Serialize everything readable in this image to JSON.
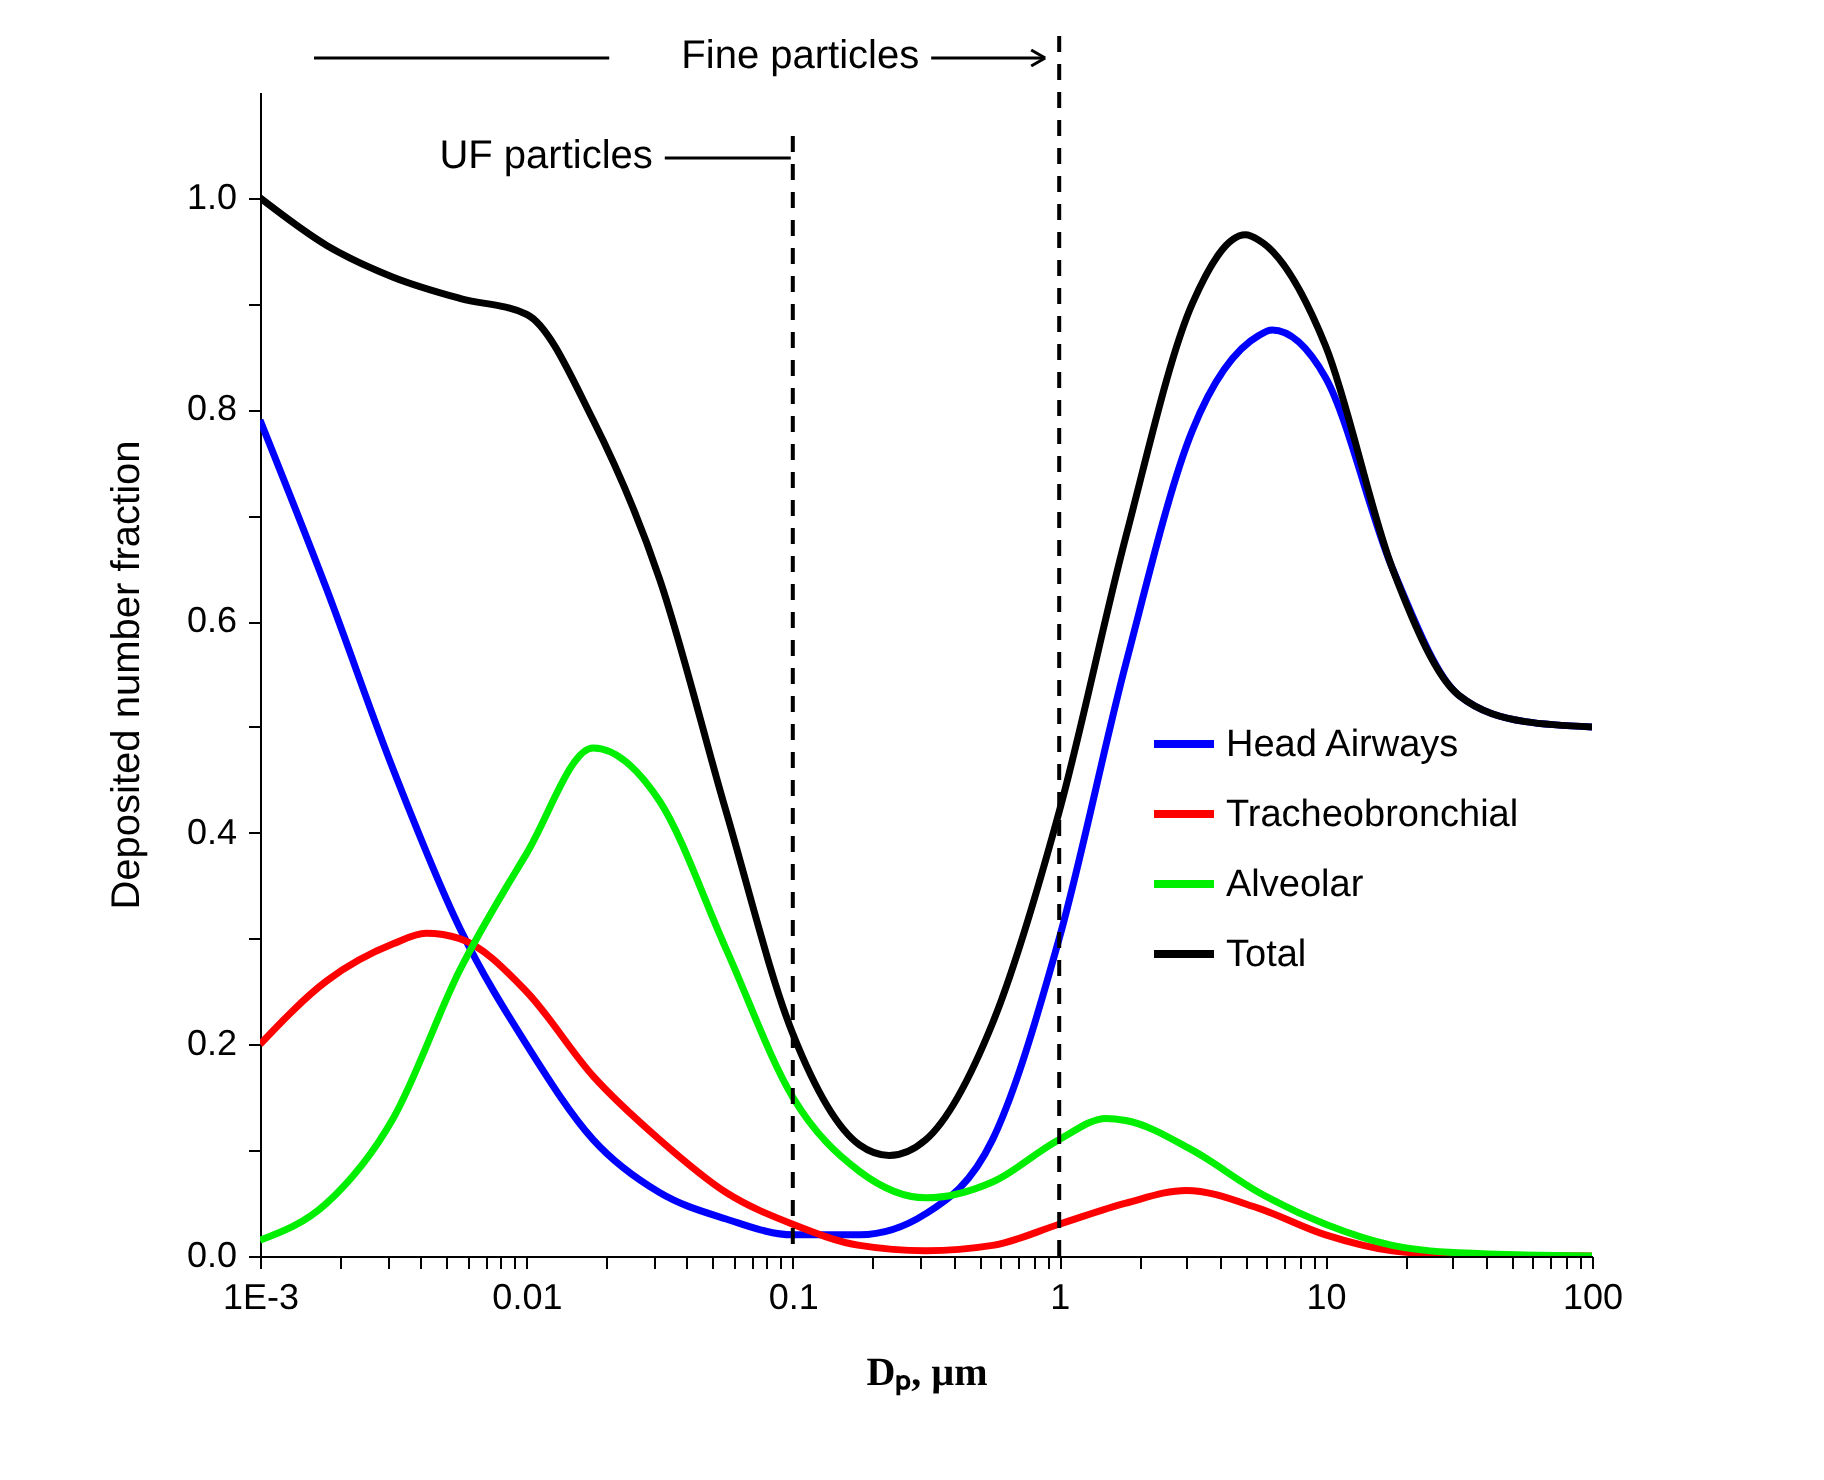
{
  "chart_data": {
    "type": "line",
    "xlabel": "Dₚ, µm",
    "ylabel": "Deposited number fraction",
    "log": "x",
    "grid": false,
    "legend": "bottom right",
    "marker": "none",
    "line_style": "solid",
    "xlim": [
      0.001,
      100
    ],
    "ylim": [
      0,
      1.1
    ],
    "xticks": [
      {
        "value": 0.001,
        "label": "1E-3"
      },
      {
        "value": 0.002,
        "label": null
      },
      {
        "value": 0.003,
        "label": null
      },
      {
        "value": 0.004,
        "label": null
      },
      {
        "value": 0.005,
        "label": null
      },
      {
        "value": 0.006,
        "label": null
      },
      {
        "value": 0.007,
        "label": null
      },
      {
        "value": 0.008,
        "label": null
      },
      {
        "value": 0.009,
        "label": null
      },
      0.01,
      {
        "value": 0.02,
        "label": null
      },
      {
        "value": 0.03,
        "label": null
      },
      {
        "value": 0.04,
        "label": null
      },
      {
        "value": 0.05,
        "label": null
      },
      {
        "value": 0.06,
        "label": null
      },
      {
        "value": 0.07,
        "label": null
      },
      {
        "value": 0.08,
        "label": null
      },
      {
        "value": 0.09,
        "label": null
      },
      0.1,
      {
        "value": 0.2,
        "label": null
      },
      {
        "value": 0.3,
        "label": null
      },
      {
        "value": 0.4,
        "label": null
      },
      {
        "value": 0.5,
        "label": null
      },
      {
        "value": 0.6,
        "label": null
      },
      {
        "value": 0.7,
        "label": null
      },
      {
        "value": 0.8,
        "label": null
      },
      {
        "value": 0.9,
        "label": null
      },
      1,
      {
        "value": 2,
        "label": null
      },
      {
        "value": 3,
        "label": null
      },
      {
        "value": 4,
        "label": null
      },
      {
        "value": 5,
        "label": null
      },
      {
        "value": 6,
        "label": null
      },
      {
        "value": 7,
        "label": null
      },
      {
        "value": 8,
        "label": null
      },
      {
        "value": 9,
        "label": null
      },
      10,
      {
        "value": 20,
        "label": null
      },
      {
        "value": 30,
        "label": null
      },
      {
        "value": 40,
        "label": null
      },
      {
        "value": 50,
        "label": null
      },
      {
        "value": 60,
        "label": null
      },
      {
        "value": 70,
        "label": null
      },
      {
        "value": 80,
        "label": null
      },
      {
        "value": 90,
        "label": null
      },
      100
    ],
    "yticks": [
      {
        "value": 0,
        "label": "0.0"
      },
      {
        "value": 0.1,
        "label": null
      },
      0.2,
      {
        "value": 0.3,
        "label": null
      },
      0.4,
      {
        "value": 0.5,
        "label": null
      },
      0.6,
      {
        "value": 0.7,
        "label": null
      },
      0.8,
      {
        "value": 0.9,
        "label": null
      },
      {
        "value": 1,
        "label": "1.0"
      }
    ],
    "series": [
      {
        "name": "Head Airways",
        "color": "#0000ff",
        "x": [
          0.001,
          0.00178,
          0.00316,
          0.00562,
          0.01,
          0.0178,
          0.0316,
          0.0562,
          0.1,
          0.178,
          0.316,
          0.562,
          1,
          1.78,
          3.16,
          5.62,
          6.3,
          10,
          17.8,
          31.6,
          56.2,
          100
        ],
        "values": [
          0.79,
          0.63,
          0.46,
          0.31,
          0.2,
          0.11,
          0.06,
          0.035,
          0.02,
          0.02,
          0.04,
          0.11,
          0.3,
          0.56,
          0.78,
          0.87,
          0.875,
          0.83,
          0.65,
          0.53,
          0.505,
          0.5
        ]
      },
      {
        "name": "Tracheobronchial",
        "color": "#ff0000",
        "x": [
          0.001,
          0.00178,
          0.00316,
          0.0042,
          0.00562,
          0.01,
          0.0178,
          0.0316,
          0.0562,
          0.1,
          0.178,
          0.316,
          0.562,
          1,
          1.78,
          3,
          5.62,
          10,
          17.8,
          31.6,
          100
        ],
        "values": [
          0.2,
          0.26,
          0.295,
          0.305,
          0.3,
          0.25,
          0.17,
          0.11,
          0.06,
          0.03,
          0.01,
          0.005,
          0.01,
          0.03,
          0.05,
          0.062,
          0.045,
          0.02,
          0.005,
          0.001,
          0
        ]
      },
      {
        "name": "Alveolar",
        "color": "#00ee00",
        "x": [
          0.001,
          0.00178,
          0.00316,
          0.00562,
          0.01,
          0.0178,
          0.0316,
          0.0562,
          0.1,
          0.178,
          0.316,
          0.562,
          1,
          1.5,
          1.78,
          3.16,
          5.62,
          10,
          17.8,
          31.6,
          100
        ],
        "values": [
          0.015,
          0.05,
          0.13,
          0.27,
          0.38,
          0.48,
          0.43,
          0.29,
          0.15,
          0.08,
          0.055,
          0.07,
          0.11,
          0.13,
          0.128,
          0.1,
          0.06,
          0.03,
          0.01,
          0.003,
          0
        ]
      },
      {
        "name": "Total",
        "color": "#000000",
        "x": [
          0.001,
          0.00178,
          0.00316,
          0.00562,
          0.01,
          0.0178,
          0.0316,
          0.0562,
          0.1,
          0.178,
          0.23,
          0.316,
          0.562,
          1,
          1.78,
          3.16,
          5,
          5.62,
          10,
          17.8,
          31.6,
          56.2,
          100
        ],
        "values": [
          1.0,
          0.955,
          0.925,
          0.905,
          0.89,
          0.79,
          0.64,
          0.42,
          0.21,
          0.105,
          0.095,
          0.11,
          0.22,
          0.42,
          0.68,
          0.9,
          0.965,
          0.96,
          0.86,
          0.65,
          0.53,
          0.505,
          0.5
        ]
      }
    ],
    "ref_lines": [
      {
        "axis": "x",
        "value": 1,
        "line_style": "dashed"
      },
      {
        "axis": "x",
        "value": 0.1,
        "line_style": "dashed"
      }
    ],
    "annotations": [
      "Fine particles",
      "UF particles"
    ]
  }
}
